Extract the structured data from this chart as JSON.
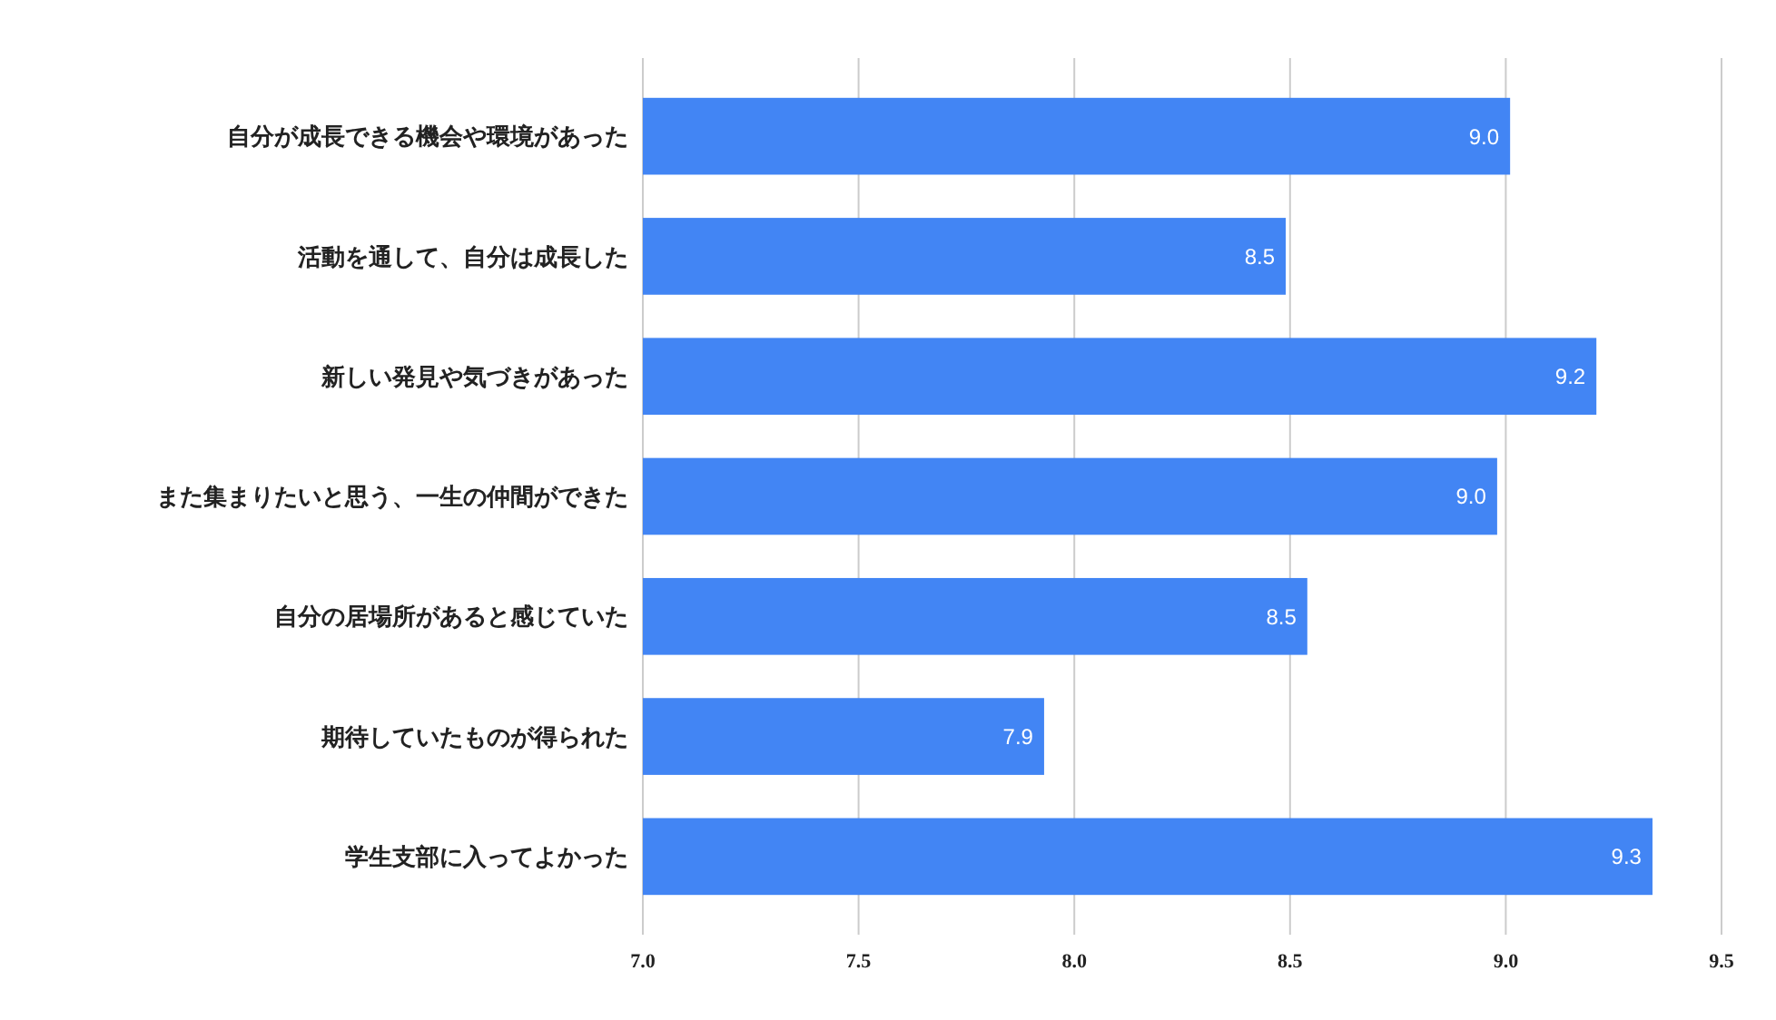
{
  "chart_data": {
    "type": "bar",
    "orientation": "horizontal",
    "categories": [
      "自分が成長できる機会や環境があった",
      "活動を通して、自分は成長した",
      "新しい発見や気づきがあった",
      "また集まりたいと思う、一生の仲間ができた",
      "自分の居場所があると感じていた",
      "期待していたものが得られた",
      "学生支部に入ってよかった"
    ],
    "values": [
      9.01,
      8.49,
      9.21,
      8.98,
      8.54,
      7.93,
      9.34
    ],
    "value_labels": [
      "9.0",
      "8.5",
      "9.2",
      "9.0",
      "8.5",
      "7.9",
      "9.3"
    ],
    "color": "#4285f4",
    "xlim": [
      7.0,
      9.5
    ],
    "xticks": [
      {
        "value": 7.0,
        "label": "7.0"
      },
      {
        "value": 7.5,
        "label": "7.5"
      },
      {
        "value": 8.0,
        "label": "8.0"
      },
      {
        "value": 8.5,
        "label": "8.5"
      },
      {
        "value": 9.0,
        "label": "9.0"
      },
      {
        "value": 9.5,
        "label": "9.5"
      }
    ],
    "grid": "x"
  }
}
